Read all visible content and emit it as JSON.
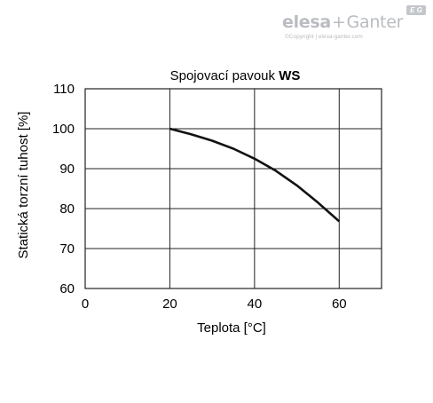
{
  "logo": {
    "brand_left": "elesa",
    "brand_plus": "+",
    "brand_right": "Ganter",
    "copyright": "©Copyright | elesa-ganter.com",
    "badge": "E G"
  },
  "colors": {
    "line": "#111111",
    "grid": "#222222",
    "logo": "#b9bcc0"
  },
  "chart_data": {
    "type": "line",
    "title": "Spojovací pavouk",
    "title_bold": "WS",
    "xlabel": "Teplota [°C]",
    "ylabel": "Statická torzní tuhost [%]",
    "xlim": [
      0,
      70
    ],
    "ylim": [
      60,
      110
    ],
    "xticks": [
      0,
      20,
      40,
      60
    ],
    "yticks": [
      60,
      70,
      80,
      90,
      100,
      110
    ],
    "grid": true,
    "series": [
      {
        "x": [
          20,
          25,
          30,
          35,
          40,
          45,
          50,
          55,
          60
        ],
        "y": [
          100,
          98.6,
          97,
          95,
          92.5,
          89.5,
          85.8,
          81.5,
          76.8
        ]
      }
    ]
  }
}
